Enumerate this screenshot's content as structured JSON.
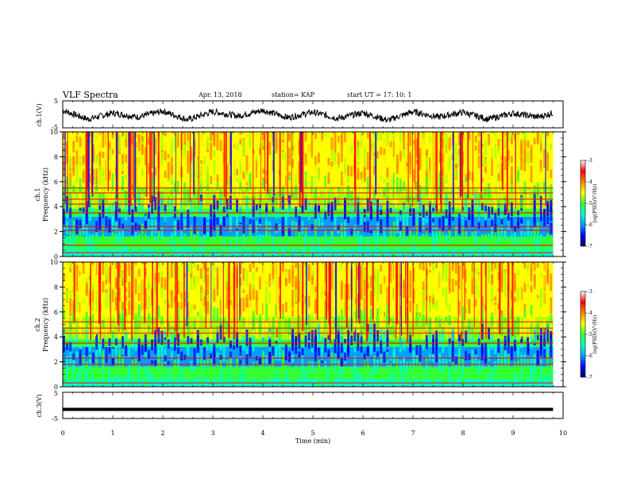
{
  "header": {
    "title": "VLF Spectra",
    "date": "Apr. 13, 2018",
    "station": "station= KAP",
    "start": "start  UT =   17: 10: 1"
  },
  "colors": {
    "spectrum_scale": [
      "#000066",
      "#0000ff",
      "#00a0ff",
      "#00ffcc",
      "#33ff33",
      "#aaff00",
      "#ffff00",
      "#ff8800",
      "#ff0000",
      "#ffffff"
    ],
    "trace": "#000000"
  },
  "chart_data": [
    {
      "type": "line",
      "name": "ch1-waveform",
      "ylabel": "ch.1(V)",
      "ylim": [
        -5,
        5
      ],
      "yticks": [
        "5",
        "-5"
      ],
      "xlim": [
        0,
        10
      ],
      "x": [
        0,
        0.5,
        1,
        1.5,
        2,
        2.5,
        3,
        3.5,
        4,
        4.5,
        5,
        5.5,
        6,
        6.5,
        7,
        7.5,
        8,
        8.5,
        9,
        9.5,
        9.8
      ],
      "values": [
        1.5,
        -1.8,
        0.5,
        -1.0,
        1.2,
        -2.0,
        1.0,
        -0.6,
        1.5,
        -1.2,
        0.8,
        -1.5,
        0.6,
        -2.2,
        1.0,
        -1.0,
        0.8,
        -1.8,
        0.4,
        -1.0,
        0.5
      ]
    },
    {
      "type": "heatmap",
      "name": "ch1-spectrogram",
      "ylabel": "ch.1\nFrequency  (kHz)",
      "ylim": [
        0,
        10
      ],
      "yticks": [
        "0",
        "2",
        "4",
        "6",
        "8",
        "10"
      ],
      "xlim": [
        0,
        9.8
      ],
      "colorbar": {
        "label": "log(PSD)(V²/Hz)",
        "range": [
          -7,
          -3
        ],
        "ticks": [
          "-3",
          "-4",
          "-5",
          "-6",
          "-7"
        ]
      },
      "frequency_bands_khz": [
        0.3,
        0.9,
        2.1,
        2.4,
        3.5,
        4.2,
        4.6,
        5.1,
        5.5
      ]
    },
    {
      "type": "heatmap",
      "name": "ch2-spectrogram",
      "ylabel": "ch.2\nFrequency  (kHz)",
      "ylim": [
        0,
        10
      ],
      "yticks": [
        "0",
        "2",
        "4",
        "6",
        "8",
        "10"
      ],
      "xlim": [
        0,
        9.8
      ],
      "colorbar": {
        "label": "log(PSD)(V²/Hz)",
        "range": [
          -7,
          -3
        ],
        "ticks": [
          "-3",
          "-4",
          "-5",
          "-6",
          "-7"
        ]
      },
      "frequency_bands_khz": [
        0.3,
        1.8,
        2.3,
        3.5,
        4.3,
        4.7,
        5.2
      ]
    },
    {
      "type": "line",
      "name": "ch3-waveform",
      "ylabel": "ch.3(V)",
      "ylim": [
        -5,
        5
      ],
      "yticks": [
        "5",
        "-5"
      ],
      "xlim": [
        0,
        10
      ],
      "x": [
        0,
        9.8
      ],
      "values": [
        -1.5,
        -1.5
      ]
    }
  ],
  "xaxis": {
    "label": "Time  (min)",
    "ticks": [
      "0",
      "1",
      "2",
      "3",
      "4",
      "5",
      "6",
      "7",
      "8",
      "9",
      "10"
    ],
    "range": [
      0,
      10
    ]
  }
}
